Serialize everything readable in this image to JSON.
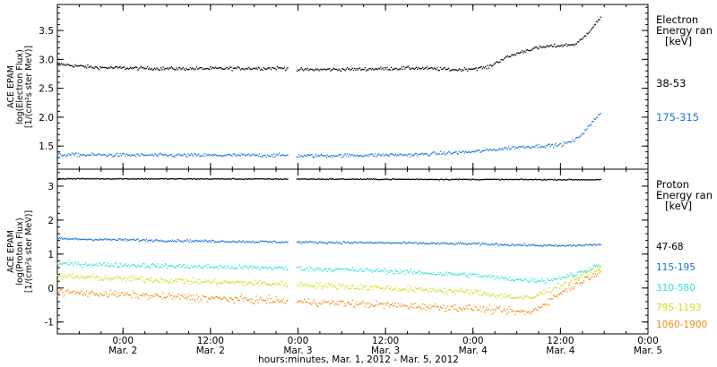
{
  "xlabel": "hours:minutes, Mar.  1, 2012 - Mar.  5, 2012",
  "x_ticks": [
    {
      "t": "2012-03-02T00:00",
      "l1": "0:00",
      "l2": "Mar. 2"
    },
    {
      "t": "2012-03-02T12:00",
      "l1": "12:00",
      "l2": "Mar. 2"
    },
    {
      "t": "2012-03-03T00:00",
      "l1": "0:00",
      "l2": "Mar. 3"
    },
    {
      "t": "2012-03-03T12:00",
      "l1": "12:00",
      "l2": "Mar. 3"
    },
    {
      "t": "2012-03-04T00:00",
      "l1": "0:00",
      "l2": "Mar. 4"
    },
    {
      "t": "2012-03-04T12:00",
      "l1": "12:00",
      "l2": "Mar. 4"
    },
    {
      "t": "2012-03-05T00:00",
      "l1": "0:00",
      "l2": "Mar. 5"
    }
  ],
  "chart_data": [
    {
      "type": "scatter",
      "panel": "electron",
      "ylabel": [
        "ACE EPAM",
        "log(Electron Flux)",
        "[1/(cm²s ster MeV)]"
      ],
      "xlim": [
        "2012-03-01T15:00",
        "2012-03-05T00:00"
      ],
      "ylim": [
        1.1,
        3.95
      ],
      "yticks": [
        1.5,
        2.0,
        2.5,
        3.0,
        3.5
      ],
      "ytick_labels": [
        "1.5",
        "2.0",
        "2.5",
        "3.0",
        "3.5"
      ],
      "legend_title": [
        "Electron",
        "Energy ran",
        "[keV]"
      ],
      "series": [
        {
          "name": "38-53",
          "color": "#000000",
          "gap": [
            "2012-03-02T22:40",
            "2012-03-02T23:50"
          ],
          "points": [
            [
              "2012-03-01T15:00",
              2.92
            ],
            [
              "2012-03-01T20:00",
              2.86
            ],
            [
              "2012-03-02T06:00",
              2.84
            ],
            [
              "2012-03-02T12:00",
              2.84
            ],
            [
              "2012-03-02T22:40",
              2.85
            ],
            [
              "2012-03-02T23:50",
              2.82
            ],
            [
              "2012-03-03T08:00",
              2.83
            ],
            [
              "2012-03-03T16:00",
              2.85
            ],
            [
              "2012-03-03T22:00",
              2.82
            ],
            [
              "2012-03-04T02:00",
              2.86
            ],
            [
              "2012-03-04T04:00",
              3.0
            ],
            [
              "2012-03-04T06:00",
              3.1
            ],
            [
              "2012-03-04T08:00",
              3.18
            ],
            [
              "2012-03-04T10:00",
              3.22
            ],
            [
              "2012-03-04T12:00",
              3.24
            ],
            [
              "2012-03-04T14:00",
              3.26
            ],
            [
              "2012-03-04T15:00",
              3.35
            ],
            [
              "2012-03-04T16:00",
              3.5
            ],
            [
              "2012-03-04T17:30",
              3.72
            ]
          ]
        },
        {
          "name": "175-315",
          "color": "#1a74d6",
          "gap": [
            "2012-03-02T22:40",
            "2012-03-02T23:50"
          ],
          "points": [
            [
              "2012-03-01T15:00",
              1.35
            ],
            [
              "2012-03-02T06:00",
              1.34
            ],
            [
              "2012-03-02T22:40",
              1.34
            ],
            [
              "2012-03-02T23:50",
              1.33
            ],
            [
              "2012-03-03T16:00",
              1.35
            ],
            [
              "2012-03-04T00:00",
              1.4
            ],
            [
              "2012-03-04T06:00",
              1.48
            ],
            [
              "2012-03-04T12:00",
              1.52
            ],
            [
              "2012-03-04T14:00",
              1.6
            ],
            [
              "2012-03-04T15:00",
              1.72
            ],
            [
              "2012-03-04T16:00",
              1.85
            ],
            [
              "2012-03-04T17:30",
              2.08
            ]
          ]
        }
      ]
    },
    {
      "type": "scatter",
      "panel": "proton",
      "ylabel": [
        "ACE EPAM",
        "log(Proton Flux)",
        "[1/(cm²s ster MeV)]"
      ],
      "xlim": [
        "2012-03-01T15:00",
        "2012-03-05T00:00"
      ],
      "ylim": [
        -1.35,
        3.5
      ],
      "yticks": [
        -1,
        0,
        1,
        2,
        3
      ],
      "ytick_labels": [
        "-1",
        "0",
        "1",
        "2",
        "3"
      ],
      "legend_title": [
        "Proton",
        "Energy ran",
        "[keV]"
      ],
      "series": [
        {
          "name": "47-68",
          "color": "#000000",
          "gap": [
            "2012-03-02T22:40",
            "2012-03-02T23:50"
          ],
          "points": [
            [
              "2012-03-01T15:00",
              3.22
            ],
            [
              "2012-03-03T00:00",
              3.21
            ],
            [
              "2012-03-04T17:30",
              3.19
            ]
          ]
        },
        {
          "name": "115-195",
          "color": "#1a74d6",
          "gap": [
            "2012-03-02T22:40",
            "2012-03-02T23:50"
          ],
          "points": [
            [
              "2012-03-01T15:00",
              1.45
            ],
            [
              "2012-03-02T12:00",
              1.38
            ],
            [
              "2012-03-03T00:00",
              1.35
            ],
            [
              "2012-03-03T12:00",
              1.33
            ],
            [
              "2012-03-04T00:00",
              1.3
            ],
            [
              "2012-03-04T12:00",
              1.24
            ],
            [
              "2012-03-04T17:30",
              1.28
            ]
          ]
        },
        {
          "name": "310-580",
          "color": "#33e0d6",
          "gap": [
            "2012-03-02T22:40",
            "2012-03-02T23:50"
          ],
          "points": [
            [
              "2012-03-01T15:00",
              0.72
            ],
            [
              "2012-03-02T12:00",
              0.62
            ],
            [
              "2012-03-03T00:00",
              0.58
            ],
            [
              "2012-03-03T12:00",
              0.5
            ],
            [
              "2012-03-04T00:00",
              0.38
            ],
            [
              "2012-03-04T06:00",
              0.25
            ],
            [
              "2012-03-04T10:00",
              0.22
            ],
            [
              "2012-03-04T14:00",
              0.4
            ],
            [
              "2012-03-04T17:30",
              0.7
            ]
          ]
        },
        {
          "name": "795-1193",
          "color": "#c8e016",
          "gap": [
            "2012-03-02T22:40",
            "2012-03-02T23:50"
          ],
          "points": [
            [
              "2012-03-01T15:00",
              0.35
            ],
            [
              "2012-03-02T12:00",
              0.18
            ],
            [
              "2012-03-03T00:00",
              0.1
            ],
            [
              "2012-03-03T12:00",
              0.0
            ],
            [
              "2012-03-04T00:00",
              -0.12
            ],
            [
              "2012-03-04T06:00",
              -0.28
            ],
            [
              "2012-03-04T08:00",
              -0.3
            ],
            [
              "2012-03-04T12:00",
              0.1
            ],
            [
              "2012-03-04T17:30",
              0.6
            ]
          ]
        },
        {
          "name": "1060-1900",
          "color": "#f08a10",
          "gap": [
            "2012-03-02T22:40",
            "2012-03-02T23:50"
          ],
          "points": [
            [
              "2012-03-01T15:00",
              -0.12
            ],
            [
              "2012-03-02T12:00",
              -0.3
            ],
            [
              "2012-03-03T00:00",
              -0.4
            ],
            [
              "2012-03-03T12:00",
              -0.5
            ],
            [
              "2012-03-04T00:00",
              -0.6
            ],
            [
              "2012-03-04T06:00",
              -0.7
            ],
            [
              "2012-03-04T08:00",
              -0.72
            ],
            [
              "2012-03-04T12:00",
              -0.15
            ],
            [
              "2012-03-04T17:30",
              0.52
            ]
          ]
        }
      ]
    }
  ]
}
